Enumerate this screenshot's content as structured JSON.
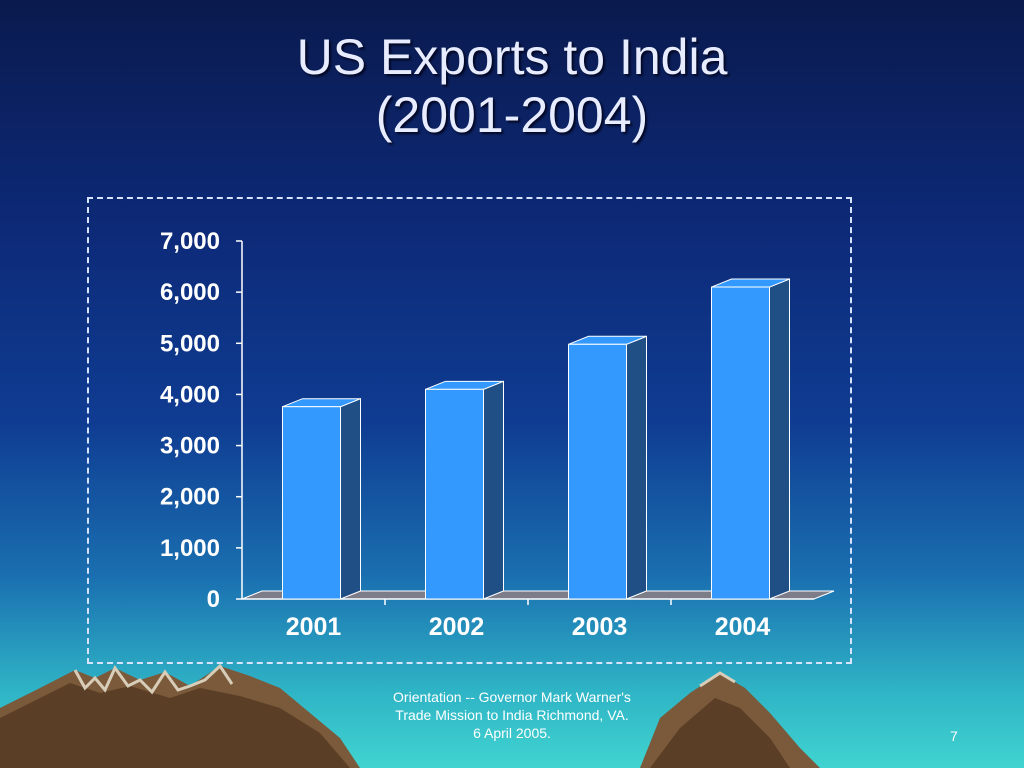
{
  "slide": {
    "title_line1": "US Exports to India",
    "title_line2": "(2001-2004)",
    "footer_line1": "Orientation -- Governor Mark Warner's",
    "footer_line2": "Trade Mission to India Richmond, VA.",
    "footer_line3": "6 April 2005.",
    "page_number": "7"
  },
  "chart_data": {
    "type": "bar",
    "title": "",
    "xlabel": "",
    "ylabel": "",
    "categories": [
      "2001",
      "2002",
      "2003",
      "2004"
    ],
    "values": [
      3760,
      4100,
      4980,
      6100
    ],
    "ylim": [
      0,
      7000
    ],
    "yticks": [
      "0",
      "1,000",
      "2,000",
      "3,000",
      "4,000",
      "5,000",
      "6,000",
      "7,000"
    ],
    "grid": false,
    "legend": "none",
    "bar_color": "#3399ff",
    "bar_side_color": "#1f4f85"
  }
}
